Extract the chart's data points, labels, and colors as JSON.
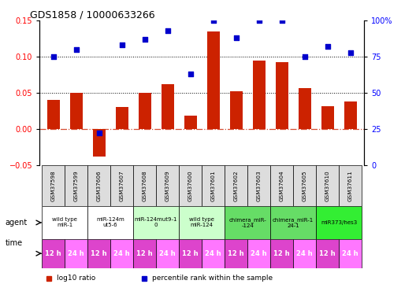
{
  "title": "GDS1858 / 10000633266",
  "samples": [
    "GSM37598",
    "GSM37599",
    "GSM37606",
    "GSM37607",
    "GSM37608",
    "GSM37609",
    "GSM37600",
    "GSM37601",
    "GSM37602",
    "GSM37603",
    "GSM37604",
    "GSM37605",
    "GSM37610",
    "GSM37611"
  ],
  "log10_ratio": [
    0.04,
    0.05,
    -0.038,
    0.03,
    0.05,
    0.062,
    0.018,
    0.135,
    0.052,
    0.095,
    0.093,
    0.057,
    0.031,
    0.038
  ],
  "percentile_rank": [
    75,
    80,
    22,
    83,
    87,
    93,
    63,
    100,
    88,
    100,
    100,
    75,
    82,
    78
  ],
  "ylim_left": [
    -0.05,
    0.15
  ],
  "ylim_right": [
    0,
    100
  ],
  "yticks_left": [
    -0.05,
    0,
    0.05,
    0.1,
    0.15
  ],
  "yticks_right": [
    0,
    25,
    50,
    75,
    100
  ],
  "bar_color": "#cc2200",
  "dot_color": "#0000cc",
  "zero_line_color": "#cc2200",
  "agent_groups": [
    {
      "label": "wild type\nmiR-1",
      "start": 0,
      "end": 2,
      "color": "#ffffff"
    },
    {
      "label": "miR-124m\nut5-6",
      "start": 2,
      "end": 4,
      "color": "#ffffff"
    },
    {
      "label": "miR-124mut9-1\n0",
      "start": 4,
      "end": 6,
      "color": "#ccffcc"
    },
    {
      "label": "wild type\nmiR-124",
      "start": 6,
      "end": 8,
      "color": "#ccffcc"
    },
    {
      "label": "chimera_miR-\n-124",
      "start": 8,
      "end": 10,
      "color": "#66dd66"
    },
    {
      "label": "chimera_miR-1\n24-1",
      "start": 10,
      "end": 12,
      "color": "#66dd66"
    },
    {
      "label": "miR373/hes3",
      "start": 12,
      "end": 14,
      "color": "#33ee33"
    }
  ],
  "time_labels": [
    "12 h",
    "24 h",
    "12 h",
    "24 h",
    "12 h",
    "24 h",
    "12 h",
    "24 h",
    "12 h",
    "24 h",
    "12 h",
    "24 h",
    "12 h",
    "24 h"
  ],
  "legend_items": [
    {
      "label": "log10 ratio",
      "color": "#cc2200"
    },
    {
      "label": "percentile rank within the sample",
      "color": "#0000cc"
    }
  ]
}
